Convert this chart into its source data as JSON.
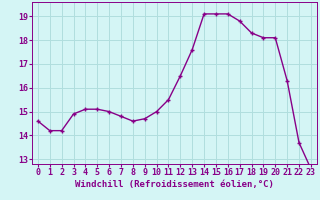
{
  "x": [
    0,
    1,
    2,
    3,
    4,
    5,
    6,
    7,
    8,
    9,
    10,
    11,
    12,
    13,
    14,
    15,
    16,
    17,
    18,
    19,
    20,
    21,
    22,
    23
  ],
  "y": [
    14.6,
    14.2,
    14.2,
    14.9,
    15.1,
    15.1,
    15.0,
    14.8,
    14.6,
    14.7,
    15.0,
    15.5,
    16.5,
    17.6,
    19.1,
    19.1,
    19.1,
    18.8,
    18.3,
    18.1,
    18.1,
    16.3,
    13.7,
    12.6
  ],
  "line_color": "#880088",
  "marker": "+",
  "markersize": 3,
  "markeredgewidth": 1.0,
  "linewidth": 1.0,
  "linestyle": "-",
  "xlabel": "Windchill (Refroidissement éolien,°C)",
  "xlabel_fontsize": 6.5,
  "background_color": "#d4f5f5",
  "grid_color": "#b0dede",
  "xlim": [
    -0.5,
    23.5
  ],
  "ylim": [
    12.8,
    19.6
  ],
  "yticks": [
    13,
    14,
    15,
    16,
    17,
    18,
    19
  ],
  "xticks": [
    0,
    1,
    2,
    3,
    4,
    5,
    6,
    7,
    8,
    9,
    10,
    11,
    12,
    13,
    14,
    15,
    16,
    17,
    18,
    19,
    20,
    21,
    22,
    23
  ],
  "tick_fontsize": 6.0
}
